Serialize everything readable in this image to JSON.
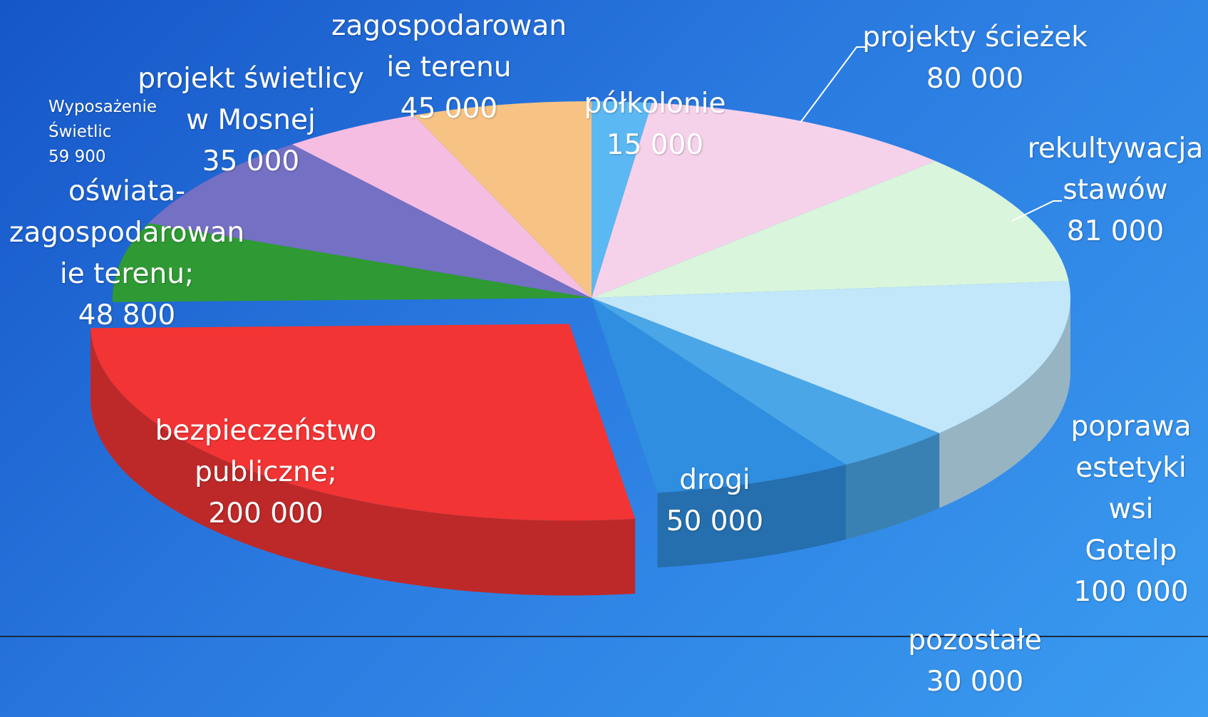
{
  "chart_data": {
    "type": "pie3d",
    "categories": [
      "półkolonie",
      "projekty ścieżek",
      "rekultywacja\nstawów",
      "poprawa\nestetyki\nwsi Gotelp",
      "pozostałe",
      "drogi",
      "bezpieczeństwo\npubliczne;",
      "oświata-\nzagospodarowan\nie terenu;",
      "Wyposażenie\nŚwietlic",
      "projekt świetlicy\nw Mosnej",
      "zagospodarowan\nie terenu"
    ],
    "values": [
      15000,
      80000,
      81000,
      100000,
      30000,
      50000,
      200000,
      48800,
      59900,
      35000,
      45000
    ],
    "value_labels": [
      "15 000",
      "80 000",
      "81 000",
      "100 000",
      "30 000",
      "50 000",
      "200 000",
      "48 800",
      "59 900",
      "35 000",
      "45 000"
    ],
    "colors": [
      "#5cb8f2",
      "#f6d2ea",
      "#d9f5dc",
      "#c2e7fa",
      "#4aa6e6",
      "#2f8ee0",
      "#f23434",
      "#2f9a34",
      "#7470c4",
      "#f6bde2",
      "#f6c384"
    ]
  }
}
